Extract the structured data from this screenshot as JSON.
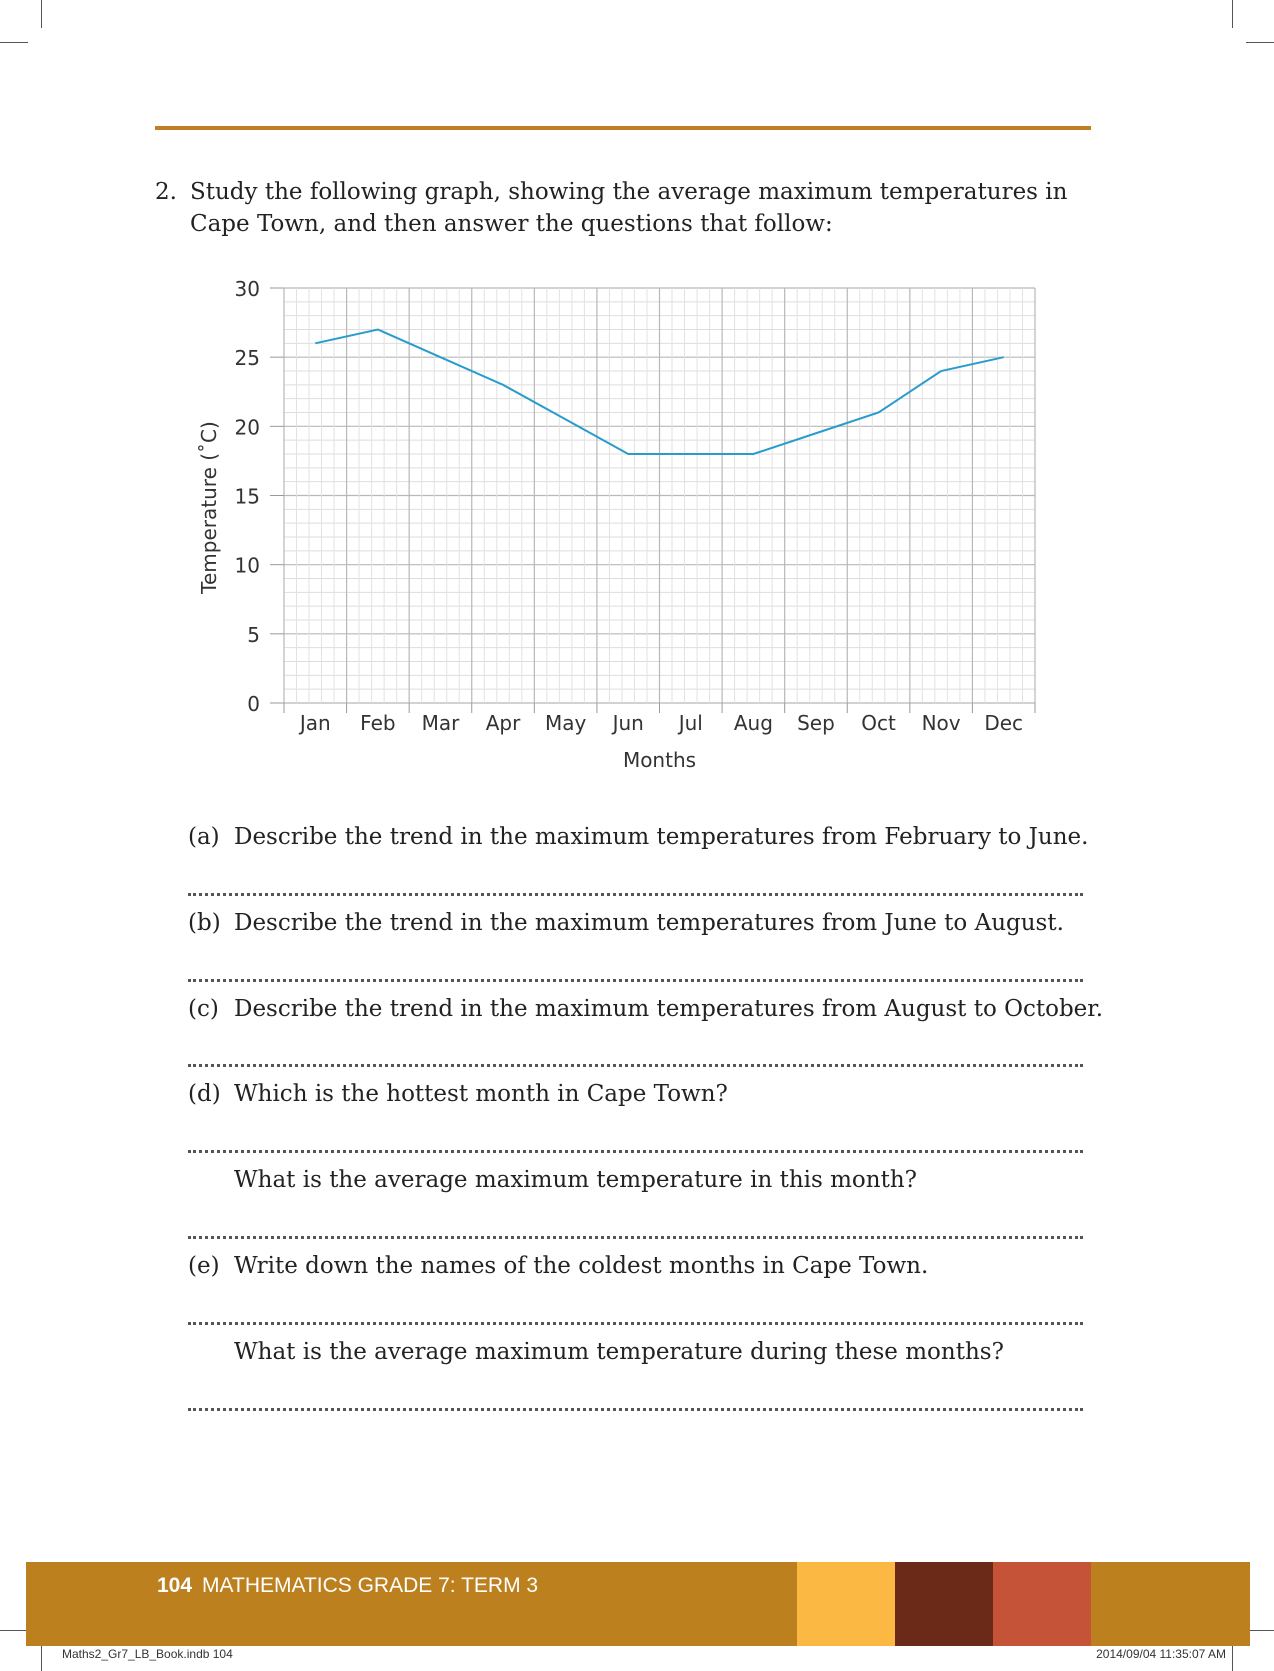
{
  "question": {
    "number": "2.",
    "text": "Study the following graph, showing the average maximum temperatures in Cape Town, and then answer the questions that follow:"
  },
  "chart_data": {
    "type": "line",
    "title": "",
    "xlabel": "Months",
    "ylabel": "Temperature (˚C)",
    "categories": [
      "Jan",
      "Feb",
      "Mar",
      "Apr",
      "May",
      "Jun",
      "Jul",
      "Aug",
      "Sep",
      "Oct",
      "Nov",
      "Dec"
    ],
    "values": [
      26,
      27,
      25,
      23,
      20.5,
      18,
      18,
      18,
      19.5,
      21,
      24,
      25
    ],
    "ylim": [
      0,
      30
    ],
    "yticks": [
      0,
      5,
      10,
      15,
      20,
      25,
      30
    ],
    "grid": true,
    "line_color": "#2a9ccc"
  },
  "subquestions": [
    {
      "label": "(a)",
      "text": "Describe the trend in the maximum temperatures from February to June."
    },
    {
      "label": "(b)",
      "text": "Describe the trend in the maximum temperatures from June to August."
    },
    {
      "label": "(c)",
      "text": "Describe the trend in the maximum temperatures from August to October."
    },
    {
      "label": "(d)",
      "text": "Which is the hottest month in Cape Town?"
    },
    {
      "label": "",
      "text": "What is the average maximum temperature in this month?"
    },
    {
      "label": "(e)",
      "text": "Write down the names of the coldest months in Cape Town."
    },
    {
      "label": "",
      "text": "What is the average maximum temperature during these months?"
    }
  ],
  "footer": {
    "page_number": "104",
    "title": "MATHEMATICS GRADE 7: TERM 3",
    "swatch_colors": [
      "#fbb843",
      "#6b2a17",
      "#c45337"
    ]
  },
  "print_info": {
    "file": "Maths2_Gr7_LB_Book.indb   104",
    "timestamp": "2014/09/04   11:35:07 AM"
  }
}
